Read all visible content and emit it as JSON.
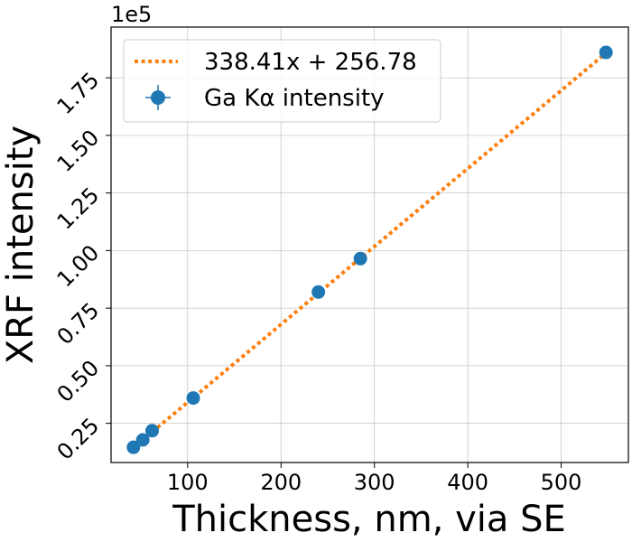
{
  "chart_data": {
    "type": "scatter",
    "xlabel": "Thickness, nm, via SE",
    "ylabel": "XRF intensity",
    "y_offset_text": "1e5",
    "xlim": [
      18,
      572
    ],
    "ylim": [
      0.08,
      1.97
    ],
    "y_scale_factor": 100000,
    "grid": true,
    "legend_position": "top-left",
    "x_ticks": [
      100,
      200,
      300,
      400,
      500
    ],
    "x_tick_labels": [
      "100",
      "200",
      "300",
      "400",
      "500"
    ],
    "y_ticks": [
      0.25,
      0.5,
      0.75,
      1.0,
      1.25,
      1.5,
      1.75
    ],
    "y_tick_labels": [
      "0.25",
      "0.50",
      "0.75",
      "1.00",
      "1.25",
      "1.50",
      "1.75"
    ],
    "series": [
      {
        "name": "Ga Kα intensity",
        "kind": "scatter",
        "color": "#1f77b4",
        "x": [
          42,
          52,
          62,
          106,
          240,
          285,
          548
        ],
        "y": [
          0.146,
          0.178,
          0.218,
          0.36,
          0.82,
          0.965,
          1.86
        ]
      },
      {
        "name": "338.41x + 256.78",
        "kind": "line",
        "style": "dotted",
        "color": "#ff7f0e",
        "slope": 338.41,
        "intercept": 256.78,
        "x_range": [
          62,
          548
        ]
      }
    ]
  }
}
